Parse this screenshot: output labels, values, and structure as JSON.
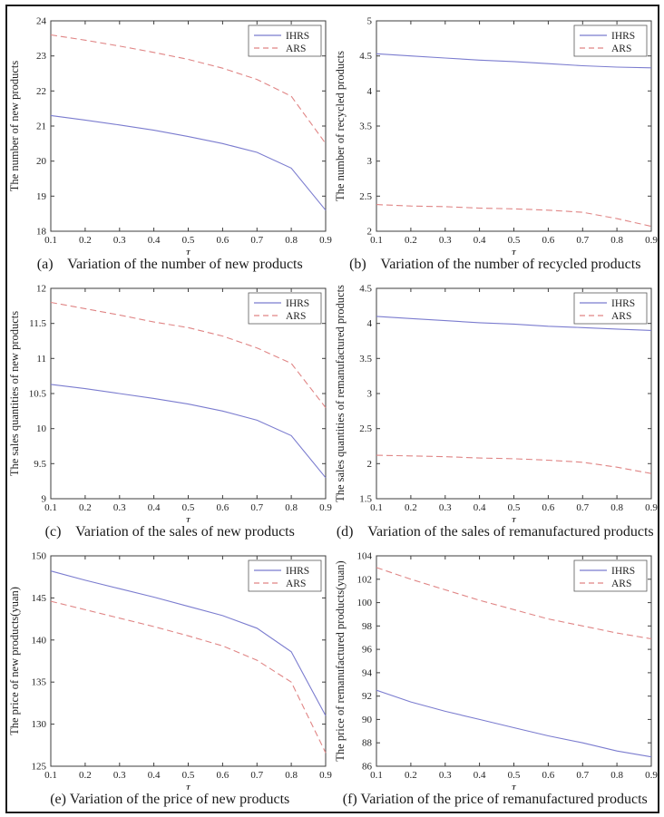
{
  "figure": {
    "background": "#ffffff",
    "frame_color": "#1b1b1b"
  },
  "colors": {
    "ihrs": "#7b7ccf",
    "ars": "#e08585",
    "axis": "#3d3d3d",
    "tick_text": "#1f1f1f",
    "legend_border": "#5a5a5a"
  },
  "legend_labels": {
    "ihrs": "IHRS",
    "ars": "ARS"
  },
  "chart_data": [
    {
      "type": "line",
      "panel": "a",
      "caption_full": "(a)    Variation of the number of new products",
      "xlabel": "τ",
      "ylabel": "The number of new products",
      "xlim": [
        0.1,
        0.9
      ],
      "ylim": [
        18,
        24
      ],
      "x_ticks": [
        "0.1",
        "0.2",
        "0.3",
        "0.4",
        "0.5",
        "0.6",
        "0.7",
        "0.8",
        "0.9"
      ],
      "y_ticks": [
        "18",
        "19",
        "20",
        "21",
        "22",
        "23",
        "24"
      ],
      "x": [
        0.1,
        0.2,
        0.3,
        0.4,
        0.5,
        0.6,
        0.7,
        0.8,
        0.9
      ],
      "grid": false,
      "legend_position": "top-right",
      "series": [
        {
          "name": "IHRS",
          "style": "solid",
          "color_key": "ihrs",
          "values": [
            21.3,
            21.17,
            21.03,
            20.88,
            20.7,
            20.5,
            20.25,
            19.8,
            18.6
          ]
        },
        {
          "name": "ARS",
          "style": "dashed",
          "color_key": "ars",
          "values": [
            23.6,
            23.45,
            23.28,
            23.1,
            22.9,
            22.65,
            22.33,
            21.85,
            20.5
          ]
        }
      ]
    },
    {
      "type": "line",
      "panel": "b",
      "caption_full": "(b)    Variation of the number of recycled products",
      "xlabel": "τ",
      "ylabel": "The number of recycled products",
      "xlim": [
        0.1,
        0.9
      ],
      "ylim": [
        2,
        5
      ],
      "x_ticks": [
        "0.1",
        "0.2",
        "0.3",
        "0.4",
        "0.5",
        "0.6",
        "0.7",
        "0.8",
        "0.9"
      ],
      "y_ticks": [
        "2",
        "2.5",
        "3",
        "3.5",
        "4",
        "4.5",
        "5"
      ],
      "x": [
        0.1,
        0.2,
        0.3,
        0.4,
        0.5,
        0.6,
        0.7,
        0.8,
        0.9
      ],
      "grid": false,
      "legend_position": "top-right",
      "series": [
        {
          "name": "IHRS",
          "style": "solid",
          "color_key": "ihrs",
          "values": [
            4.53,
            4.5,
            4.47,
            4.44,
            4.42,
            4.39,
            4.36,
            4.34,
            4.33
          ]
        },
        {
          "name": "ARS",
          "style": "dashed",
          "color_key": "ars",
          "values": [
            2.38,
            2.36,
            2.35,
            2.33,
            2.32,
            2.3,
            2.27,
            2.18,
            2.07
          ]
        }
      ]
    },
    {
      "type": "line",
      "panel": "c",
      "caption_full": "(c)    Variation of the sales of new products",
      "xlabel": "τ",
      "ylabel": "The sales quantities of new products",
      "xlim": [
        0.1,
        0.9
      ],
      "ylim": [
        9,
        12
      ],
      "x_ticks": [
        "0.1",
        "0.2",
        "0.3",
        "0.4",
        "0.5",
        "0.6",
        "0.7",
        "0.8",
        "0.9"
      ],
      "y_ticks": [
        "9",
        "9.5",
        "10",
        "10.5",
        "11",
        "11.5",
        "12"
      ],
      "x": [
        0.1,
        0.2,
        0.3,
        0.4,
        0.5,
        0.6,
        0.7,
        0.8,
        0.9
      ],
      "grid": false,
      "legend_position": "top-right",
      "series": [
        {
          "name": "IHRS",
          "style": "solid",
          "color_key": "ihrs",
          "values": [
            10.63,
            10.57,
            10.5,
            10.43,
            10.35,
            10.25,
            10.12,
            9.9,
            9.3
          ]
        },
        {
          "name": "ARS",
          "style": "dashed",
          "color_key": "ars",
          "values": [
            11.8,
            11.71,
            11.62,
            11.52,
            11.44,
            11.32,
            11.15,
            10.93,
            10.3
          ]
        }
      ]
    },
    {
      "type": "line",
      "panel": "d",
      "caption_full": "(d)    Variation of the sales of remanufactured products",
      "xlabel": "τ",
      "ylabel": "The sales quantities of remanufactured products",
      "xlim": [
        0.1,
        0.9
      ],
      "ylim": [
        1.5,
        4.5
      ],
      "x_ticks": [
        "0.1",
        "0.2",
        "0.3",
        "0.4",
        "0.5",
        "0.6",
        "0.7",
        "0.8",
        "0.9"
      ],
      "y_ticks": [
        "1.5",
        "2",
        "2.5",
        "3",
        "3.5",
        "4",
        "4.5"
      ],
      "x": [
        0.1,
        0.2,
        0.3,
        0.4,
        0.5,
        0.6,
        0.7,
        0.8,
        0.9
      ],
      "grid": false,
      "legend_position": "top-right",
      "series": [
        {
          "name": "IHRS",
          "style": "solid",
          "color_key": "ihrs",
          "values": [
            4.1,
            4.07,
            4.04,
            4.01,
            3.99,
            3.96,
            3.94,
            3.92,
            3.9
          ]
        },
        {
          "name": "ARS",
          "style": "dashed",
          "color_key": "ars",
          "values": [
            2.12,
            2.11,
            2.1,
            2.08,
            2.07,
            2.05,
            2.02,
            1.95,
            1.86
          ]
        }
      ]
    },
    {
      "type": "line",
      "panel": "e",
      "caption_full": "(e) Variation of the price of new products",
      "xlabel": "τ",
      "ylabel": "The price of new products(yuan)",
      "xlim": [
        0.1,
        0.9
      ],
      "ylim": [
        125,
        150
      ],
      "x_ticks": [
        "0.1",
        "0.2",
        "0.3",
        "0.4",
        "0.5",
        "0.6",
        "0.7",
        "0.8",
        "0.9"
      ],
      "y_ticks": [
        "125",
        "130",
        "135",
        "140",
        "145",
        "150"
      ],
      "x": [
        0.1,
        0.2,
        0.3,
        0.4,
        0.5,
        0.6,
        0.7,
        0.8,
        0.9
      ],
      "grid": false,
      "legend_position": "top-right",
      "series": [
        {
          "name": "IHRS",
          "style": "solid",
          "color_key": "ihrs",
          "values": [
            148.2,
            147.1,
            146.1,
            145.1,
            144.0,
            142.9,
            141.4,
            138.6,
            131.0
          ]
        },
        {
          "name": "ARS",
          "style": "dashed",
          "color_key": "ars",
          "values": [
            144.6,
            143.6,
            142.6,
            141.6,
            140.5,
            139.3,
            137.6,
            135.0,
            126.6
          ]
        }
      ]
    },
    {
      "type": "line",
      "panel": "f",
      "caption_full": "(f) Variation of the price of remanufactured products",
      "xlabel": "τ",
      "ylabel": "The price of remanufactured products(yuan)",
      "xlim": [
        0.1,
        0.9
      ],
      "ylim": [
        86,
        104
      ],
      "x_ticks": [
        "0.1",
        "0.2",
        "0.3",
        "0.4",
        "0.5",
        "0.6",
        "0.7",
        "0.8",
        "0.9"
      ],
      "y_ticks": [
        "86",
        "88",
        "90",
        "92",
        "94",
        "96",
        "98",
        "100",
        "102",
        "104"
      ],
      "x": [
        0.1,
        0.2,
        0.3,
        0.4,
        0.5,
        0.6,
        0.7,
        0.8,
        0.9
      ],
      "grid": false,
      "legend_position": "top-right",
      "series": [
        {
          "name": "IHRS",
          "style": "solid",
          "color_key": "ihrs",
          "values": [
            92.5,
            91.5,
            90.7,
            90.0,
            89.3,
            88.6,
            88.0,
            87.3,
            86.8
          ]
        },
        {
          "name": "ARS",
          "style": "dashed",
          "color_key": "ars",
          "values": [
            103.0,
            102.0,
            101.1,
            100.2,
            99.4,
            98.6,
            98.0,
            97.4,
            96.9
          ]
        }
      ]
    }
  ]
}
